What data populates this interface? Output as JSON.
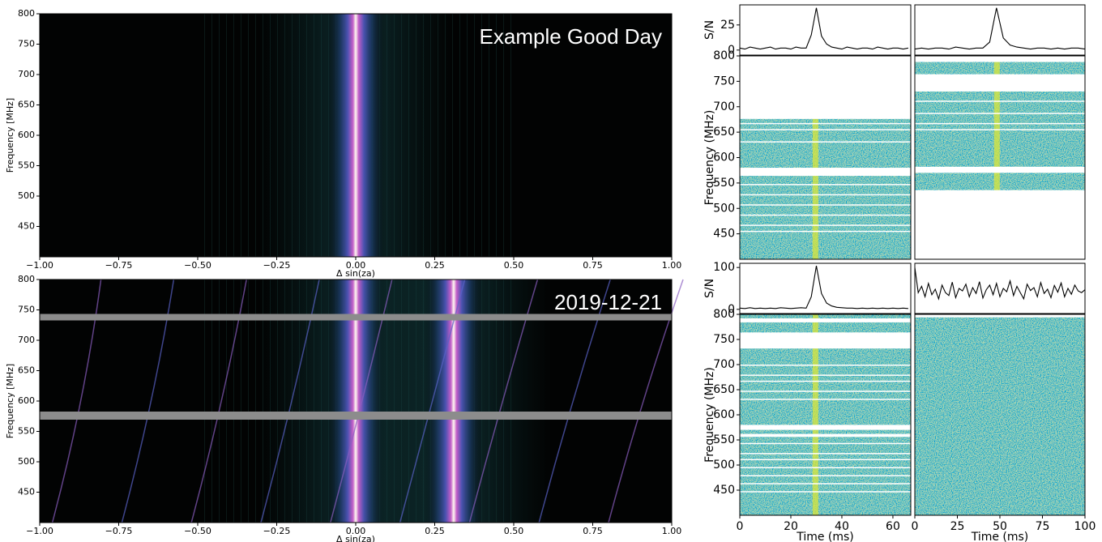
{
  "chart_data": [
    {
      "type": "image",
      "annotation": "Example Good Day",
      "xlabel": "Δ sin(za)",
      "ylabel": "Frequency [MHz]",
      "xlim": [
        -1,
        1
      ],
      "ylim": [
        400,
        800
      ],
      "xticks": [
        {
          "value": -1,
          "label": "−1.00"
        },
        {
          "value": -0.75,
          "label": "−0.75"
        },
        {
          "value": -0.5,
          "label": "−0.50"
        },
        {
          "value": -0.25,
          "label": "−0.25"
        },
        {
          "value": 0,
          "label": "0.00"
        },
        {
          "value": 0.25,
          "label": "0.25"
        },
        {
          "value": 0.5,
          "label": "0.50"
        },
        {
          "value": 0.75,
          "label": "0.75"
        },
        {
          "value": 1,
          "label": "1.00"
        }
      ],
      "yticks": [
        450,
        500,
        550,
        600,
        650,
        700,
        750,
        800
      ]
    },
    {
      "type": "image",
      "annotation": "2019-12-21",
      "xlabel": "Δ sin(za)",
      "ylabel": "Frequency [MHz]",
      "xlim": [
        -1,
        1
      ],
      "ylim": [
        400,
        800
      ],
      "xticks": [
        {
          "value": -1,
          "label": "−1.00"
        },
        {
          "value": -0.75,
          "label": "−0.75"
        },
        {
          "value": -0.5,
          "label": "−0.50"
        },
        {
          "value": -0.25,
          "label": "−0.25"
        },
        {
          "value": 0,
          "label": "0.00"
        },
        {
          "value": 0.25,
          "label": "0.25"
        },
        {
          "value": 0.5,
          "label": "0.50"
        },
        {
          "value": 0.75,
          "label": "0.75"
        },
        {
          "value": 1,
          "label": "1.00"
        }
      ],
      "yticks": [
        450,
        500,
        550,
        600,
        650,
        700,
        750,
        800
      ]
    },
    {
      "type": "waterfall",
      "sn": {
        "ylabel": "S/N",
        "ylim": [
          -5,
          45
        ],
        "yticks": [
          0,
          25
        ],
        "x": [
          0,
          2,
          4,
          6,
          8,
          10,
          12,
          14,
          16,
          18,
          20,
          22,
          24,
          26,
          28,
          30,
          32,
          34,
          36,
          38,
          40,
          42,
          44,
          46,
          48,
          50,
          52,
          54,
          56,
          58,
          60,
          62,
          64,
          66
        ],
        "values": [
          2,
          1,
          3,
          2,
          1,
          2,
          3,
          1,
          2,
          2,
          1,
          3,
          2,
          2,
          15,
          42,
          14,
          6,
          3,
          2,
          1,
          3,
          2,
          1,
          2,
          2,
          1,
          3,
          2,
          1,
          2,
          2,
          1,
          2
        ]
      },
      "spectrum": {
        "ylabel": "Frequency (MHz)",
        "xlim": [
          0,
          67
        ],
        "ylim": [
          400,
          800
        ],
        "yticks": [
          450,
          500,
          550,
          600,
          650,
          700,
          750,
          800
        ]
      }
    },
    {
      "type": "waterfall",
      "sn": {
        "ylim": [
          -5,
          45
        ],
        "x": [
          0,
          4,
          8,
          12,
          16,
          20,
          24,
          28,
          32,
          36,
          40,
          44,
          48,
          52,
          56,
          60,
          64,
          68,
          72,
          76,
          80,
          84,
          88,
          92,
          96,
          100
        ],
        "values": [
          1,
          2,
          1,
          2,
          2,
          1,
          3,
          2,
          1,
          2,
          2,
          8,
          42,
          12,
          5,
          3,
          2,
          1,
          2,
          2,
          1,
          2,
          1,
          2,
          2,
          1
        ]
      },
      "spectrum": {
        "xlim": [
          0,
          100
        ],
        "ylim": [
          400,
          800
        ]
      }
    },
    {
      "type": "waterfall",
      "sn": {
        "ylabel": "S/N",
        "ylim": [
          -10,
          110
        ],
        "yticks": [
          0,
          100
        ],
        "x": [
          0,
          2,
          4,
          6,
          8,
          10,
          12,
          14,
          16,
          18,
          20,
          22,
          24,
          26,
          28,
          30,
          32,
          34,
          36,
          38,
          40,
          42,
          44,
          46,
          48,
          50,
          52,
          54,
          56,
          58,
          60,
          62,
          64,
          66
        ],
        "values": [
          3,
          2,
          4,
          2,
          3,
          2,
          3,
          2,
          4,
          3,
          2,
          3,
          4,
          3,
          30,
          104,
          38,
          15,
          8,
          5,
          4,
          3,
          3,
          2,
          3,
          2,
          3,
          2,
          3,
          2,
          3,
          2,
          3,
          2
        ]
      },
      "spectrum": {
        "ylabel": "Frequency (MHz)",
        "xlabel": "Time (ms)",
        "xlim": [
          0,
          67
        ],
        "ylim": [
          400,
          800
        ],
        "xticks": [
          0,
          20,
          40,
          60
        ],
        "yticks": [
          450,
          500,
          550,
          600,
          650,
          700,
          750,
          800
        ]
      }
    },
    {
      "type": "waterfall",
      "sn": {
        "ylim": [
          -10,
          110
        ],
        "x": [
          0,
          2,
          4,
          6,
          8,
          10,
          12,
          14,
          16,
          18,
          20,
          22,
          24,
          26,
          28,
          30,
          32,
          34,
          36,
          38,
          40,
          42,
          44,
          46,
          48,
          50,
          52,
          54,
          56,
          58,
          60,
          62,
          64,
          66,
          68,
          70,
          72,
          74,
          76,
          78,
          80,
          82,
          84,
          86,
          88,
          90,
          92,
          94,
          96,
          98,
          100
        ],
        "values": [
          100,
          40,
          55,
          30,
          62,
          35,
          48,
          25,
          58,
          40,
          33,
          65,
          28,
          50,
          44,
          60,
          30,
          52,
          38,
          66,
          27,
          47,
          58,
          35,
          62,
          30,
          50,
          42,
          68,
          33,
          55,
          40,
          25,
          60,
          45,
          52,
          30,
          64,
          38,
          48,
          28,
          57,
          41,
          63,
          30,
          50,
          36,
          58,
          44,
          40,
          47
        ]
      },
      "spectrum": {
        "xlabel": "Time (ms)",
        "xlim": [
          0,
          100
        ],
        "ylim": [
          400,
          800
        ],
        "xticks": [
          0,
          25,
          50,
          75,
          100
        ]
      }
    }
  ]
}
